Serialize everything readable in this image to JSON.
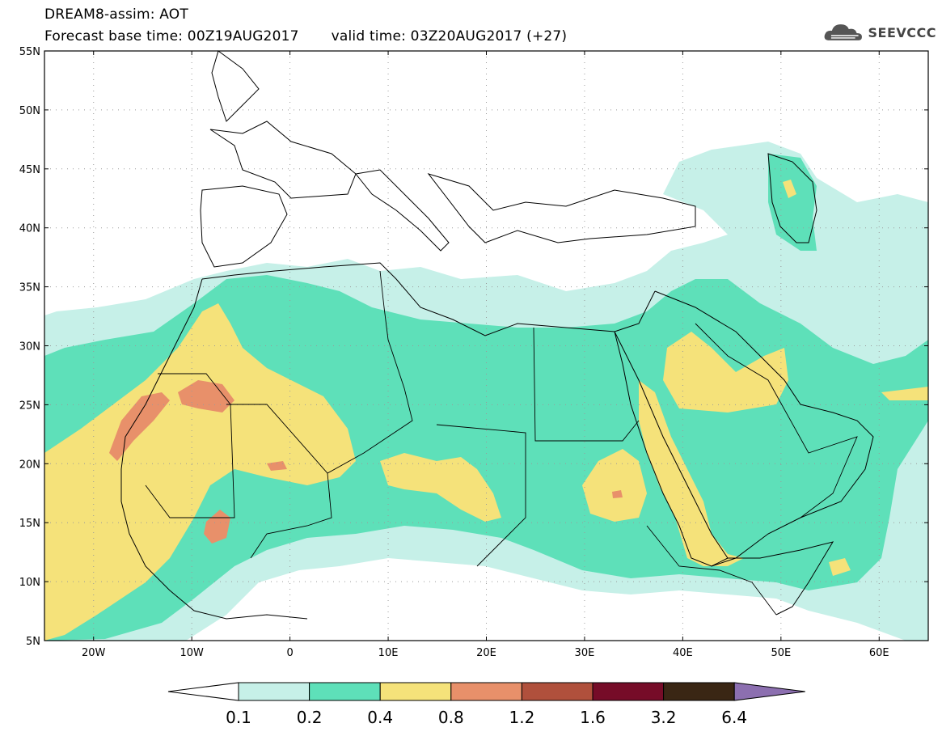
{
  "header": {
    "line1": "DREAM8-assim: AOT",
    "base_time": "Forecast base time: 00Z19AUG2017",
    "valid_time": "valid time: 03Z20AUG2017 (+27)"
  },
  "logo": {
    "text": "SEEVCCC",
    "icon": "cloud-logo-icon"
  },
  "map": {
    "lat_labels": [
      "55N",
      "50N",
      "45N",
      "40N",
      "35N",
      "30N",
      "25N",
      "20N",
      "15N",
      "10N",
      "5N"
    ],
    "lon_labels": [
      "20W",
      "10W",
      "0",
      "10E",
      "20E",
      "30E",
      "40E",
      "50E",
      "60E"
    ],
    "grid": "dotted",
    "extent": {
      "lon": [
        -25,
        65
      ],
      "lat": [
        5,
        55
      ]
    }
  },
  "colorbar": {
    "labels": [
      "0.1",
      "0.2",
      "0.4",
      "0.8",
      "1.2",
      "1.6",
      "3.2",
      "6.4"
    ],
    "colors": [
      "#c6f0e8",
      "#5ee0b9",
      "#f5e27a",
      "#e8906a",
      "#b0503c",
      "#760c28",
      "#3a2614",
      "#8c6fb0"
    ],
    "under_color": "#ffffff"
  }
}
